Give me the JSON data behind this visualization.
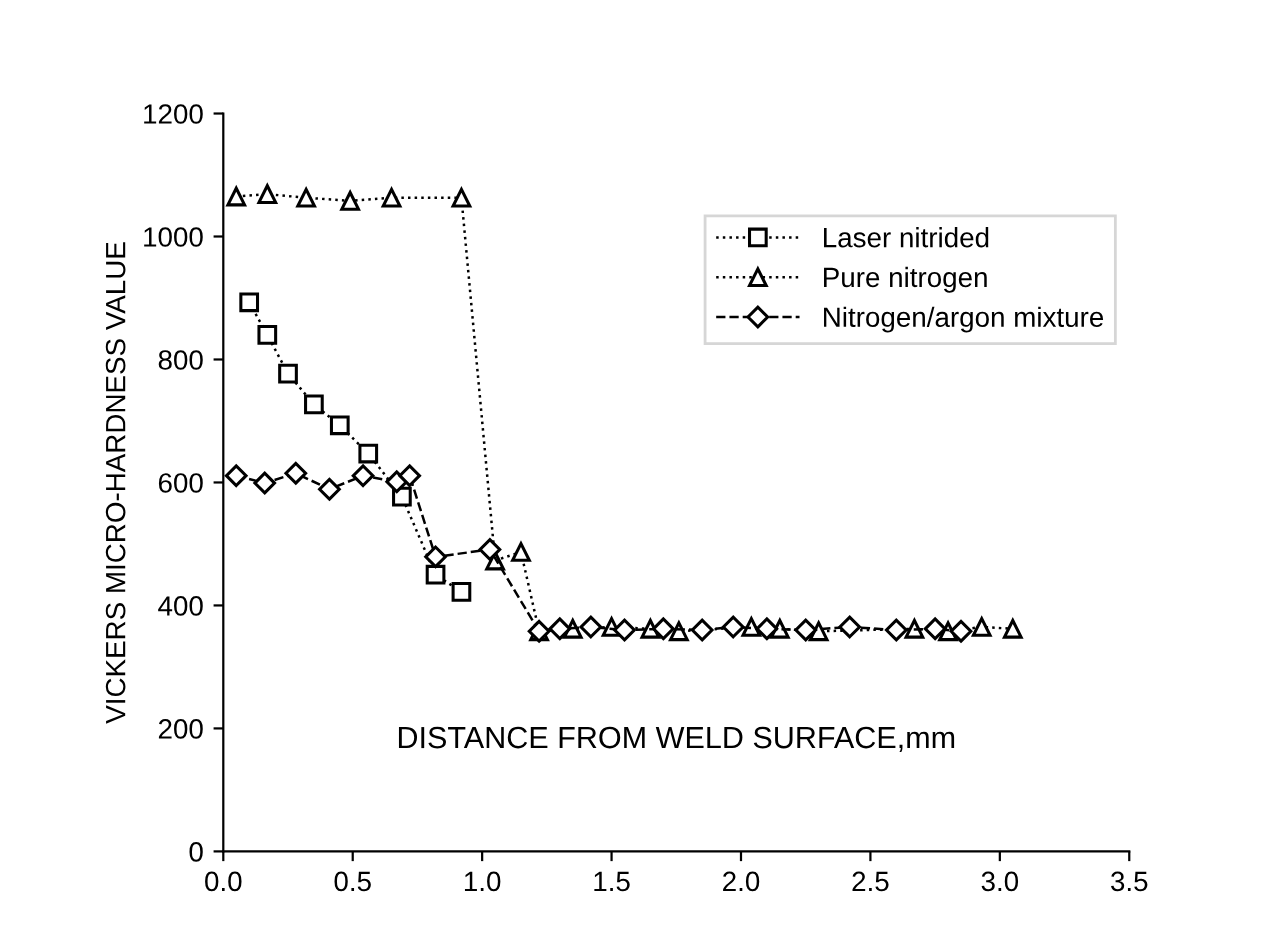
{
  "chart_data": {
    "type": "line",
    "xlabel": "DISTANCE FROM WELD SURFACE,mm",
    "ylabel": "VICKERS MICRO-HARDNESS VALUE",
    "xlim": [
      0,
      3.5
    ],
    "ylim": [
      0,
      1200
    ],
    "xticks": [
      {
        "value": 0,
        "label": "0.0"
      },
      0.5,
      {
        "value": 1,
        "label": "1.0"
      },
      1.5,
      {
        "value": 2,
        "label": "2.0"
      },
      2.5,
      {
        "value": 3,
        "label": "3.0"
      },
      3.5
    ],
    "yticks": [
      0,
      200,
      400,
      600,
      800,
      1000,
      1200
    ],
    "grid": false,
    "legend": "top right",
    "series": [
      {
        "name": "Laser nitrided",
        "color": "#000000",
        "marker": "square",
        "line_style": "dotted",
        "x": [
          0.1,
          0.17,
          0.25,
          0.35,
          0.45,
          0.56,
          0.69,
          0.82,
          0.92
        ],
        "values": [
          893,
          840,
          777,
          727,
          693,
          647,
          577,
          450,
          422
        ]
      },
      {
        "name": "Pure nitrogen",
        "color": "#000000",
        "marker": "triangle",
        "line_style": "dotted",
        "x": [
          0.05,
          0.17,
          0.32,
          0.49,
          0.65,
          0.92,
          1.05,
          1.15,
          1.22,
          1.35,
          1.5,
          1.65,
          1.76,
          2.04,
          2.15,
          2.3,
          2.67,
          2.8,
          2.93,
          3.05
        ],
        "values": [
          1065,
          1069,
          1063,
          1058,
          1063,
          1063,
          473,
          487,
          358,
          362,
          365,
          362,
          358,
          365,
          362,
          358,
          362,
          358,
          365,
          362
        ]
      },
      {
        "name": "Nitrogen/argon mixture",
        "color": "#000000",
        "marker": "diamond",
        "line_style": "dashed",
        "x": [
          0.05,
          0.16,
          0.28,
          0.41,
          0.54,
          0.67,
          0.72,
          0.82,
          1.03,
          1.22,
          1.3,
          1.42,
          1.55,
          1.7,
          1.85,
          1.97,
          2.1,
          2.25,
          2.42,
          2.6,
          2.75,
          2.85
        ],
        "values": [
          611,
          599,
          615,
          589,
          611,
          601,
          611,
          479,
          491,
          358,
          362,
          365,
          360,
          362,
          360,
          365,
          362,
          360,
          365,
          360,
          362,
          358
        ]
      }
    ]
  }
}
